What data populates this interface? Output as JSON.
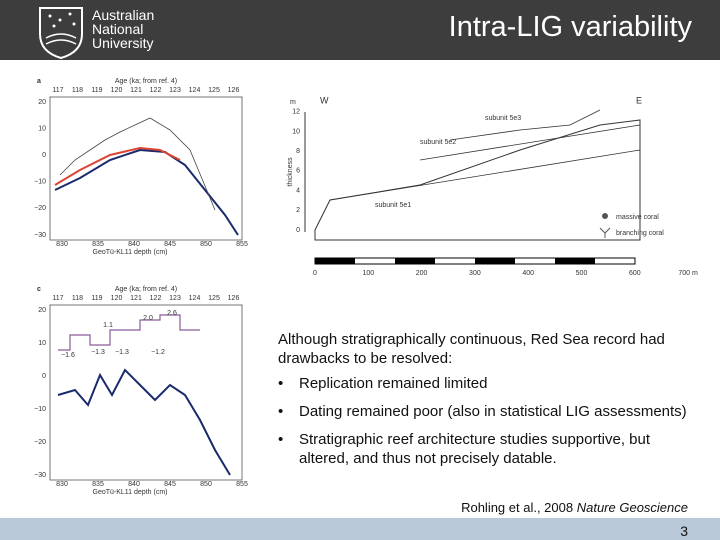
{
  "header": {
    "logo": [
      "Australian",
      "National",
      "University"
    ],
    "title": "Intra-LIG variability"
  },
  "figure_a": {
    "panel": "a",
    "top_axis_label": "Age (ka; from ref. 4)",
    "top_ticks": [
      "117",
      "118",
      "119",
      "120",
      "121",
      "122",
      "123",
      "124",
      "125",
      "126"
    ],
    "y_ticks": [
      "20",
      "10",
      "0",
      "−10",
      "−20",
      "−30"
    ],
    "bottom_ticks": [
      "830",
      "835",
      "840",
      "845",
      "850",
      "855"
    ],
    "bottom_axis_label": "GeoTü-KL11 depth (cm)"
  },
  "figure_c": {
    "panel": "c",
    "top_axis_label": "Age (ka; from ref. 4)",
    "top_ticks": [
      "117",
      "118",
      "119",
      "120",
      "121",
      "122",
      "123",
      "124",
      "125",
      "126"
    ],
    "y_ticks": [
      "20",
      "10",
      "0",
      "−10",
      "−20",
      "−30"
    ],
    "bottom_ticks": [
      "830",
      "835",
      "840",
      "845",
      "850",
      "855"
    ],
    "bottom_axis_label": "GeoTü-KL11 depth (cm)",
    "annotations": [
      "−1.6",
      "−1.3",
      "−1.3",
      "−1.2",
      "1.1",
      "2.0",
      "2.6"
    ]
  },
  "diagram": {
    "unit": "m",
    "y_label": "thickness",
    "y_ticks": [
      "0",
      "2",
      "4",
      "6",
      "8",
      "10",
      "12"
    ],
    "west": "W",
    "east": "E",
    "units": [
      "subunit 5e3",
      "subunit 5e2",
      "subunit 5e1"
    ],
    "legend": [
      "massive coral",
      "branching coral"
    ],
    "x_ticks": [
      "0",
      "100",
      "200",
      "300",
      "400",
      "500",
      "600",
      "700 m"
    ]
  },
  "text": {
    "intro": "Although stratigraphically continuous, Red Sea record had drawbacks to be resolved:",
    "bullets": [
      "Replication remained limited",
      "Dating remained poor (also in statistical LIG assessments)",
      "Stratigraphic reef architecture studies supportive, but altered, and thus not precisely datable."
    ],
    "citation_authors": "Rohling et al., 2008 ",
    "citation_journal": "Nature Geoscience"
  },
  "footer": {
    "page": "3"
  }
}
